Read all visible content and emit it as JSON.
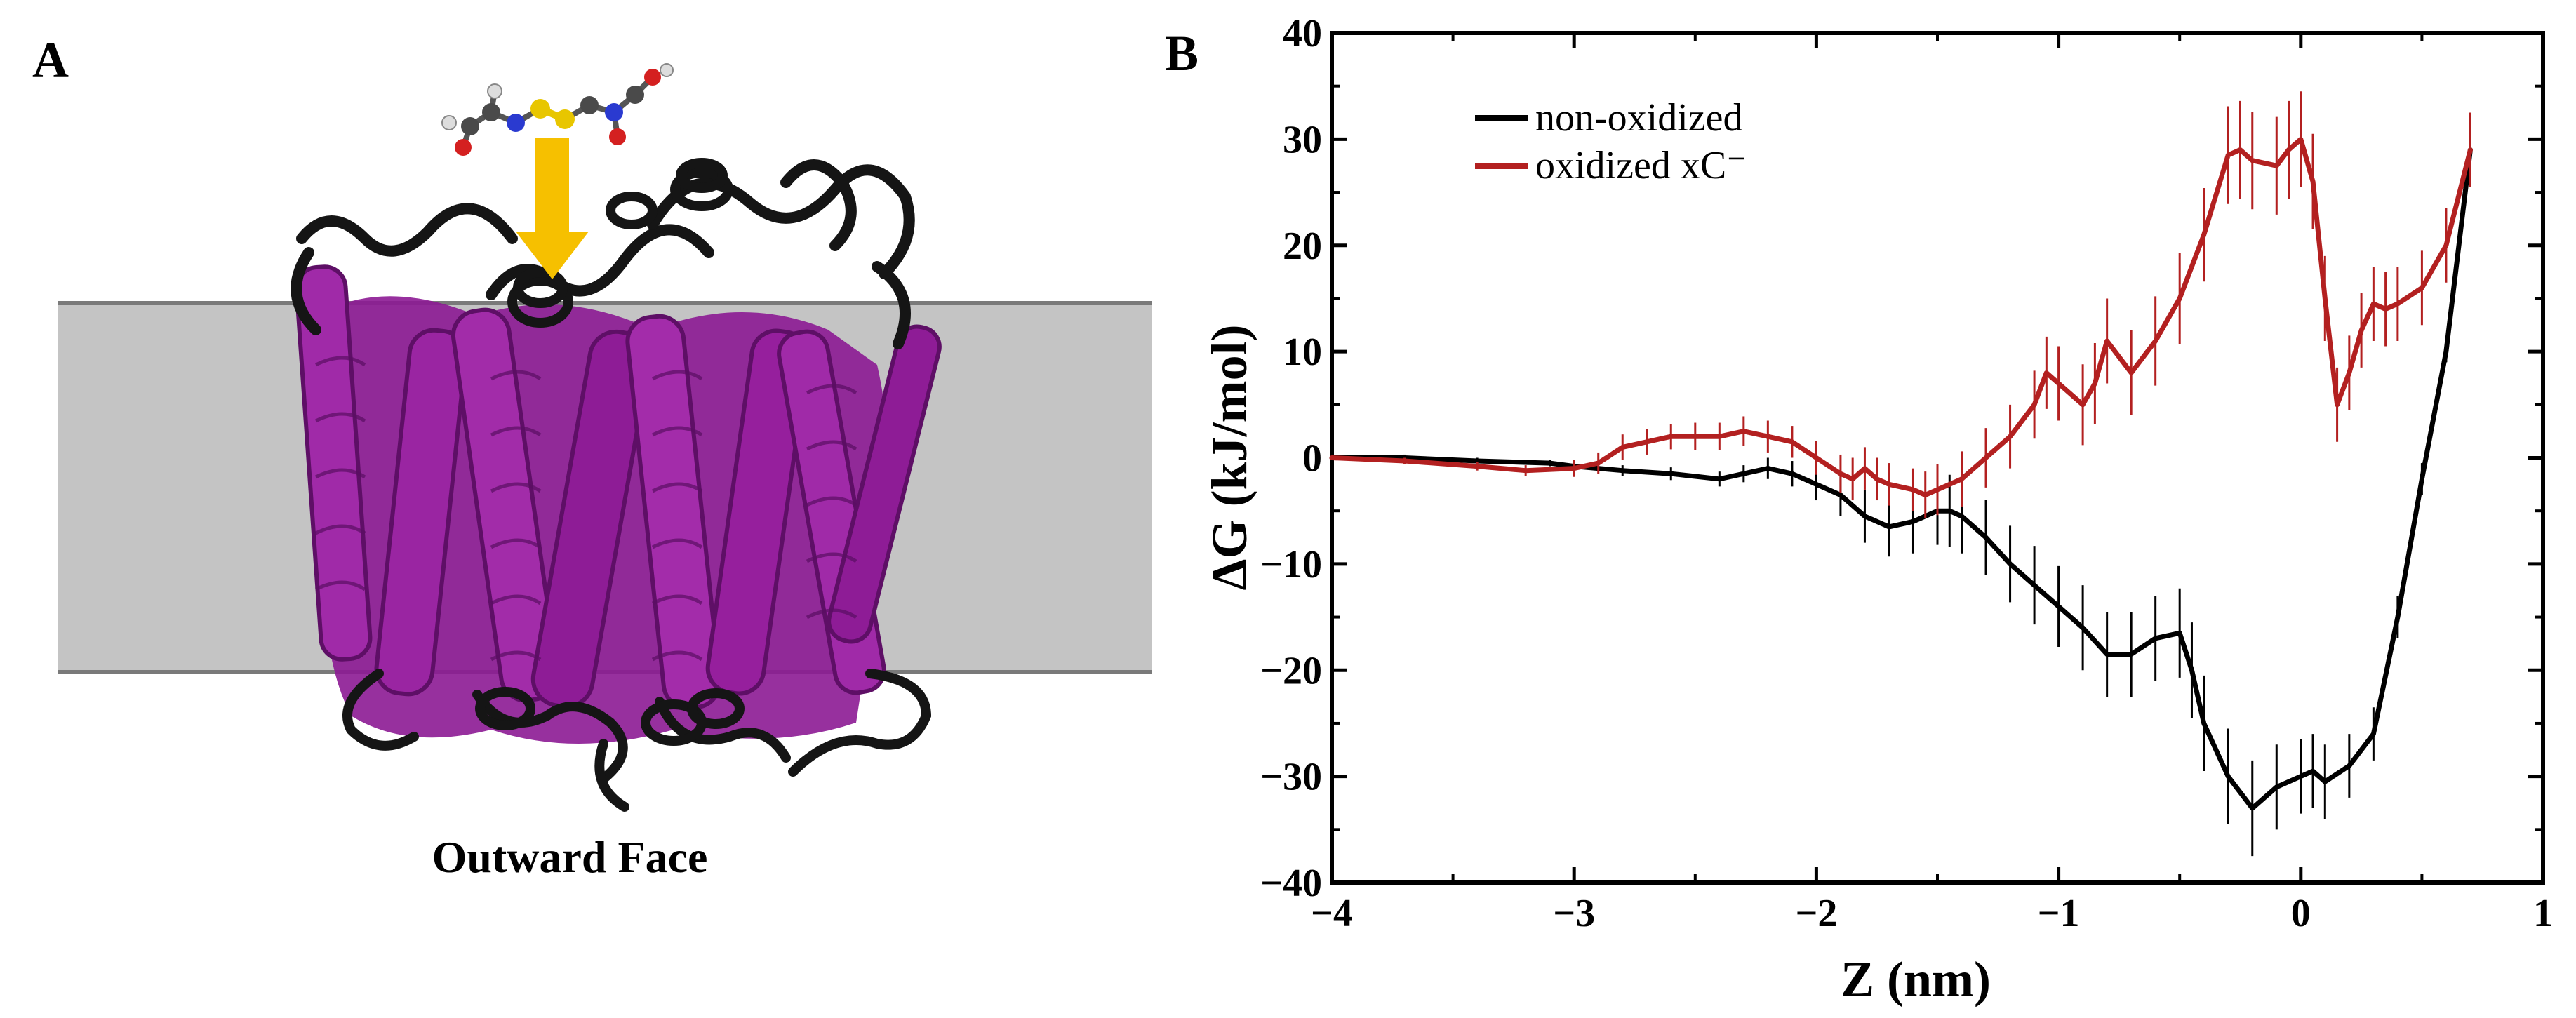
{
  "panel_a": {
    "letter": "A",
    "caption": "Outward Face",
    "colors": {
      "membrane": "#c3c3c3",
      "helix": "#8b1a92",
      "loop": "#1a1a1a",
      "arrow": "#f6c000"
    }
  },
  "panel_b": {
    "letter": "B"
  },
  "chart_data": {
    "type": "line",
    "title": "",
    "xlabel": "Z (nm)",
    "ylabel": "ΔG (kJ/mol)",
    "xlim": [
      -4,
      1
    ],
    "ylim": [
      -40,
      40
    ],
    "xticks": [
      -4,
      -3,
      -2,
      -1,
      0,
      1
    ],
    "yticks": [
      -40,
      -30,
      -20,
      -10,
      0,
      10,
      20,
      30,
      40
    ],
    "xtick_labels": [
      "−4",
      "−3",
      "−2",
      "−1",
      "0",
      "1"
    ],
    "ytick_labels": [
      "−40",
      "−30",
      "−20",
      "−10",
      "0",
      "10",
      "20",
      "30",
      "40"
    ],
    "grid": false,
    "legend": "top-left",
    "series": [
      {
        "name": "non-oxidized",
        "color": "#000000",
        "x": [
          -4.0,
          -3.7,
          -3.4,
          -3.1,
          -3.0,
          -2.8,
          -2.6,
          -2.4,
          -2.3,
          -2.2,
          -2.1,
          -2.0,
          -1.9,
          -1.8,
          -1.7,
          -1.6,
          -1.5,
          -1.45,
          -1.4,
          -1.3,
          -1.2,
          -1.1,
          -1.0,
          -0.9,
          -0.8,
          -0.7,
          -0.6,
          -0.5,
          -0.45,
          -0.4,
          -0.3,
          -0.2,
          -0.1,
          0.0,
          0.05,
          0.1,
          0.2,
          0.3,
          0.4,
          0.5,
          0.6,
          0.7
        ],
        "y": [
          0,
          0,
          -0.3,
          -0.5,
          -0.8,
          -1.2,
          -1.5,
          -2.0,
          -1.5,
          -1.0,
          -1.5,
          -2.5,
          -3.5,
          -5.5,
          -6.5,
          -6.0,
          -5.0,
          -5.0,
          -5.5,
          -7.5,
          -10.0,
          -12.0,
          -14.0,
          -16.0,
          -18.5,
          -18.5,
          -17.0,
          -16.5,
          -20.0,
          -25.0,
          -30.0,
          -33.0,
          -31.0,
          -30.0,
          -29.5,
          -30.5,
          -29.0,
          -26.0,
          -15.0,
          -2.0,
          10.0,
          29.0
        ],
        "err": [
          0,
          0.3,
          0.3,
          0.3,
          0.4,
          0.5,
          0.6,
          0.7,
          0.8,
          1.0,
          1.2,
          1.5,
          2.0,
          2.5,
          2.8,
          3.0,
          3.2,
          3.4,
          3.5,
          3.5,
          3.6,
          3.7,
          3.8,
          4.0,
          4.0,
          4.0,
          4.0,
          4.2,
          4.5,
          4.5,
          4.5,
          4.5,
          4.0,
          3.5,
          3.5,
          3.5,
          3.0,
          2.5,
          2.0,
          1.5,
          1.0,
          1.0
        ]
      },
      {
        "name": "oxidized xC⁻",
        "color": "#b32020",
        "x": [
          -4.0,
          -3.7,
          -3.4,
          -3.2,
          -3.0,
          -2.9,
          -2.8,
          -2.7,
          -2.6,
          -2.5,
          -2.4,
          -2.3,
          -2.2,
          -2.1,
          -2.0,
          -1.9,
          -1.85,
          -1.8,
          -1.75,
          -1.7,
          -1.6,
          -1.55,
          -1.5,
          -1.4,
          -1.3,
          -1.2,
          -1.1,
          -1.05,
          -1.0,
          -0.9,
          -0.85,
          -0.8,
          -0.7,
          -0.6,
          -0.5,
          -0.4,
          -0.3,
          -0.25,
          -0.2,
          -0.1,
          -0.05,
          0.0,
          0.05,
          0.1,
          0.15,
          0.2,
          0.25,
          0.3,
          0.35,
          0.4,
          0.5,
          0.6,
          0.7
        ],
        "y": [
          0,
          -0.3,
          -0.8,
          -1.2,
          -1.0,
          -0.5,
          1.0,
          1.5,
          2.0,
          2.0,
          2.0,
          2.5,
          2.0,
          1.5,
          0,
          -1.5,
          -2.0,
          -1.0,
          -2.0,
          -2.5,
          -3.0,
          -3.5,
          -3.0,
          -2.0,
          0,
          2.0,
          5.0,
          8.0,
          7.0,
          5.0,
          7.0,
          11.0,
          8.0,
          11.0,
          15.0,
          21.0,
          28.5,
          29.0,
          28.0,
          27.5,
          29.0,
          30.0,
          26.0,
          15.0,
          5.0,
          8.0,
          12.0,
          14.5,
          14.0,
          14.5,
          16.0,
          20.0,
          29.0
        ],
        "err": [
          0,
          0.3,
          0.4,
          0.5,
          0.8,
          1.0,
          1.2,
          1.2,
          1.2,
          1.3,
          1.3,
          1.4,
          1.5,
          1.5,
          1.6,
          1.8,
          2.0,
          2.0,
          2.0,
          2.0,
          2.0,
          2.2,
          2.4,
          2.6,
          2.8,
          3.0,
          3.2,
          3.4,
          3.5,
          3.8,
          3.8,
          4.0,
          4.0,
          4.2,
          4.3,
          4.4,
          4.6,
          4.6,
          4.6,
          4.6,
          4.6,
          4.5,
          4.5,
          4.0,
          3.5,
          3.5,
          3.5,
          3.5,
          3.5,
          3.5,
          3.5,
          3.5,
          3.5
        ]
      }
    ]
  }
}
